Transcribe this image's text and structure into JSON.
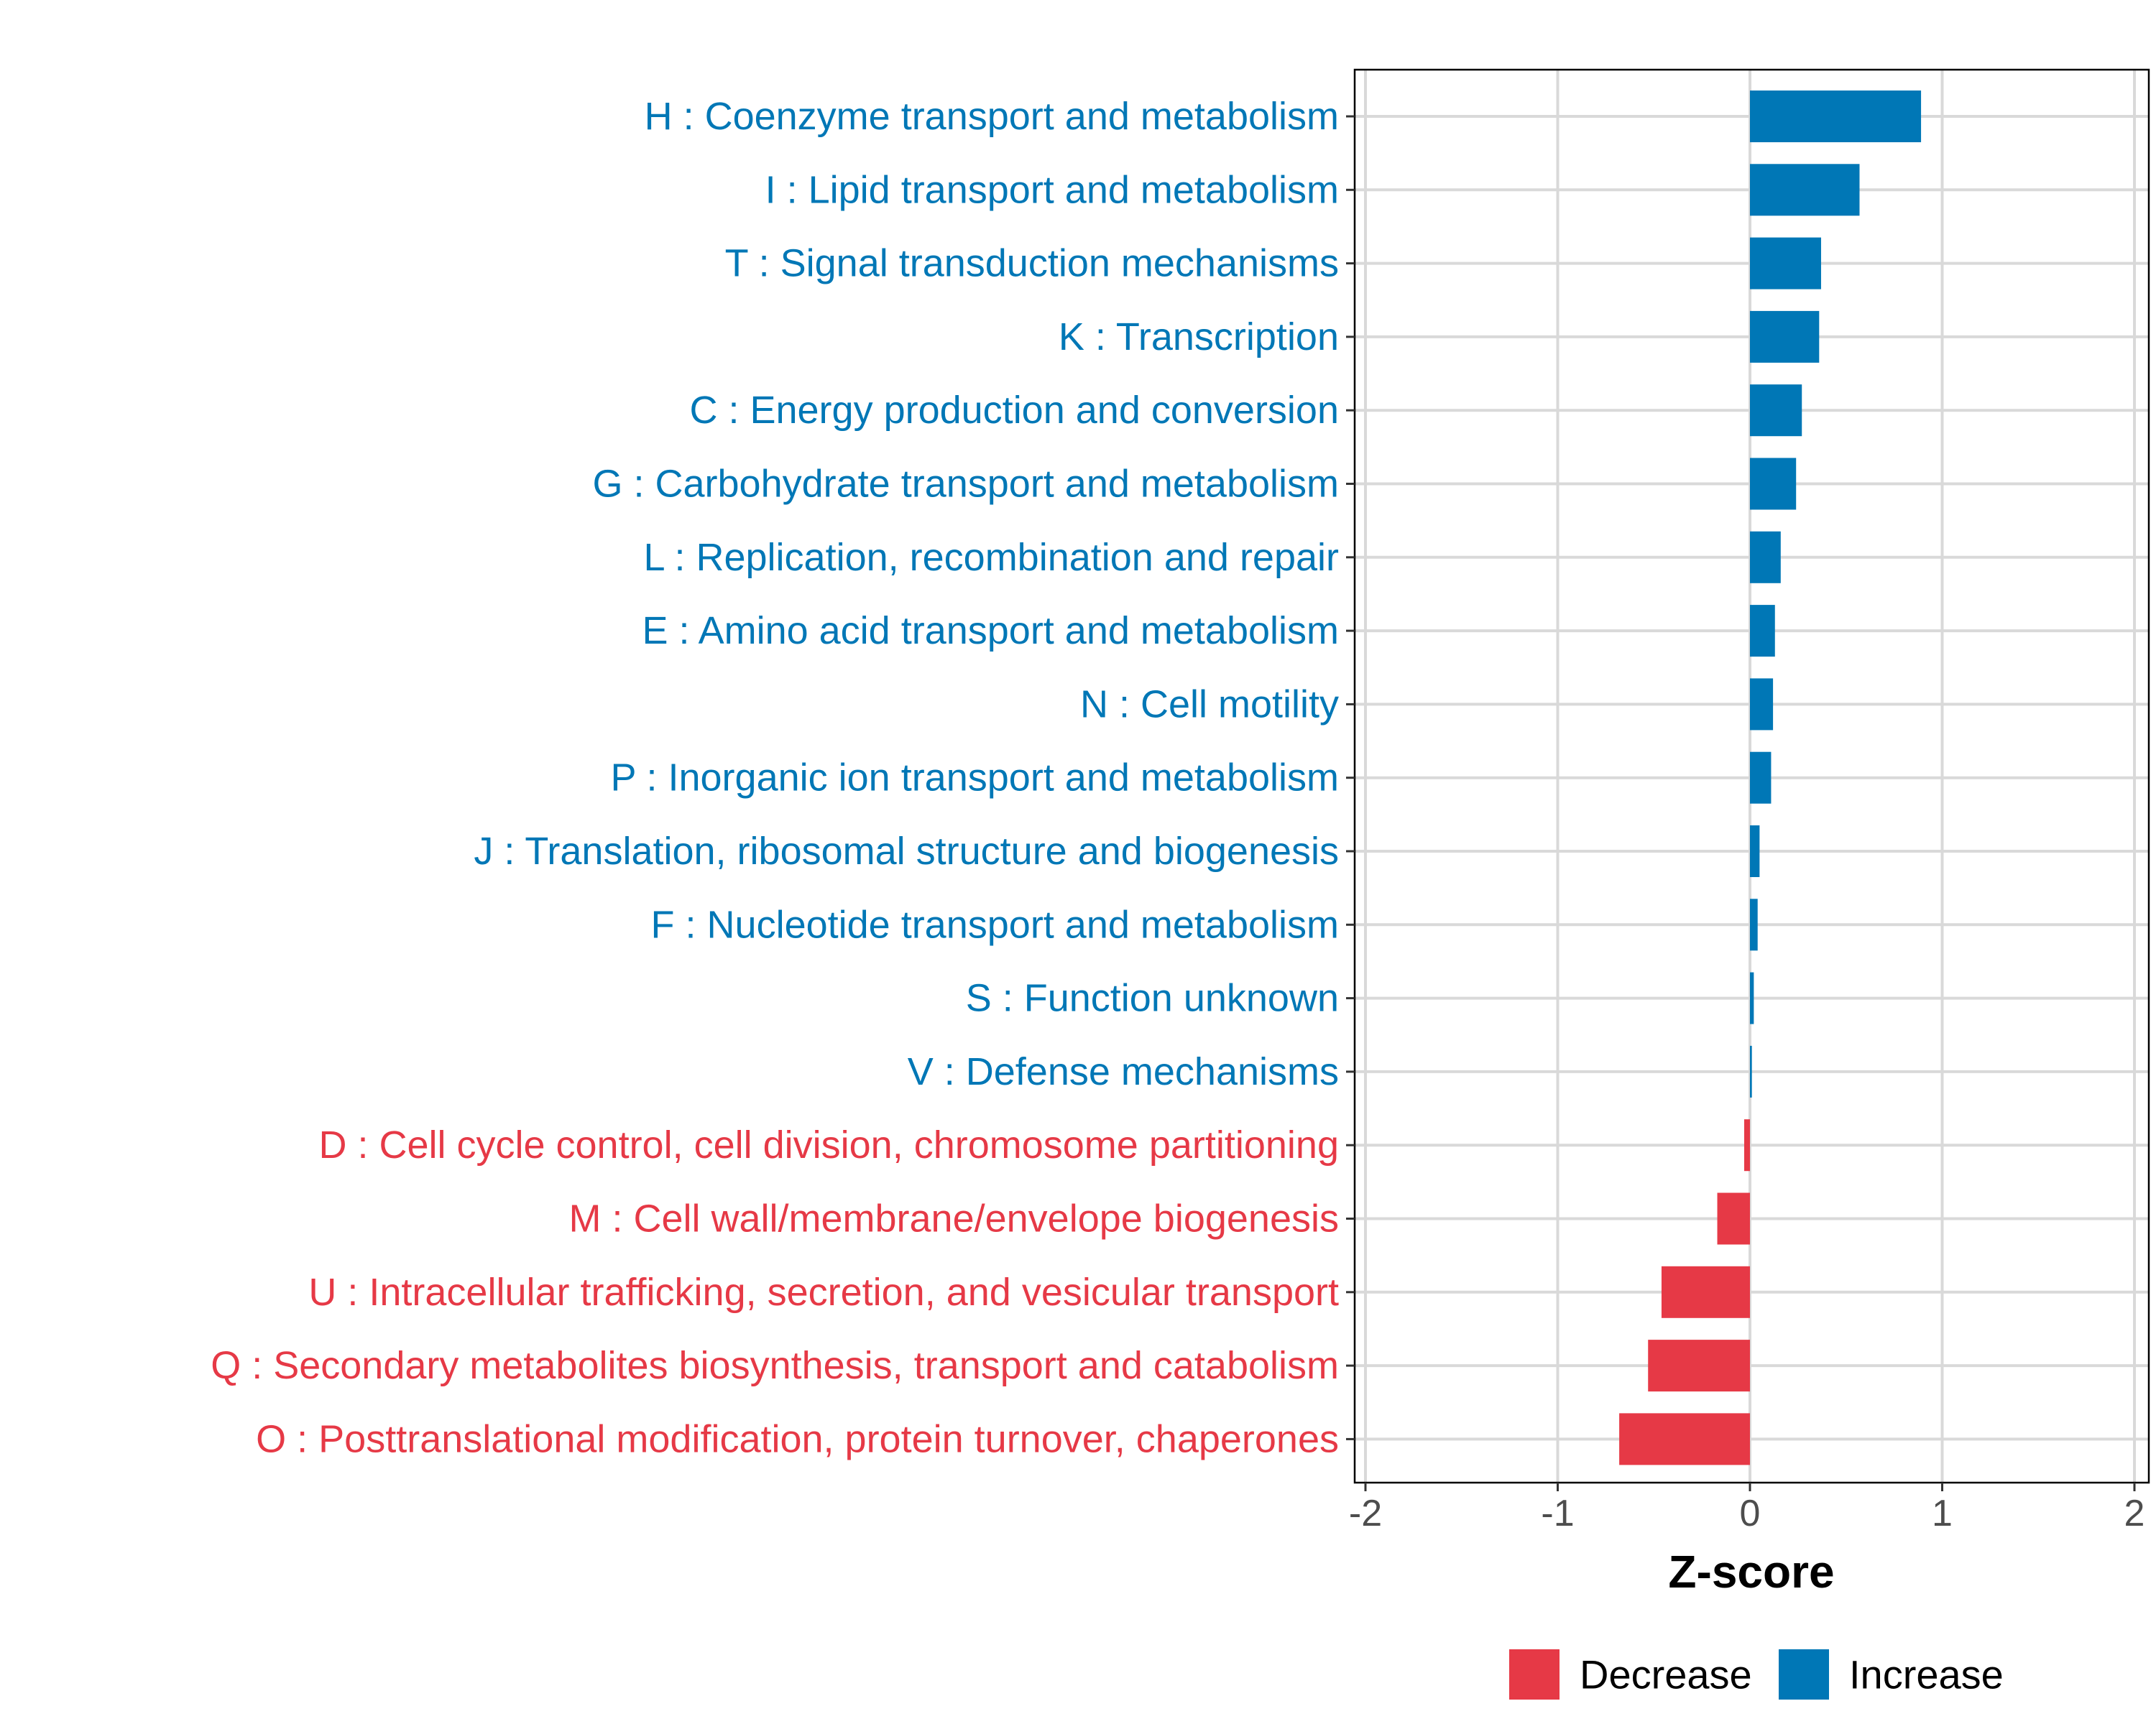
{
  "chart_data": {
    "type": "bar",
    "orientation": "horizontal",
    "title": "",
    "xlabel": "Z-score",
    "ylabel": "",
    "xlim": [
      -2,
      2
    ],
    "xticks": [
      -2,
      -1,
      0,
      1,
      2
    ],
    "xtick_labels": [
      "-2",
      "-1",
      "0",
      "1",
      "2"
    ],
    "grid": true,
    "legend": {
      "placement": "bottom",
      "entries": [
        {
          "name": "Decrease",
          "color": "#E63946"
        },
        {
          "name": "Increase",
          "color": "#0077B6"
        }
      ]
    },
    "categories": [
      {
        "label": "H : Coenzyme transport and metabolism",
        "value": 0.89,
        "group": "Increase"
      },
      {
        "label": "I : Lipid transport and metabolism",
        "value": 0.57,
        "group": "Increase"
      },
      {
        "label": "T : Signal transduction mechanisms",
        "value": 0.37,
        "group": "Increase"
      },
      {
        "label": "K : Transcription",
        "value": 0.36,
        "group": "Increase"
      },
      {
        "label": "C : Energy production and conversion",
        "value": 0.27,
        "group": "Increase"
      },
      {
        "label": "G : Carbohydrate transport and metabolism",
        "value": 0.24,
        "group": "Increase"
      },
      {
        "label": "L : Replication, recombination and repair",
        "value": 0.16,
        "group": "Increase"
      },
      {
        "label": "E : Amino acid transport and metabolism",
        "value": 0.13,
        "group": "Increase"
      },
      {
        "label": "N : Cell motility",
        "value": 0.12,
        "group": "Increase"
      },
      {
        "label": "P : Inorganic ion transport and metabolism",
        "value": 0.11,
        "group": "Increase"
      },
      {
        "label": "J : Translation, ribosomal structure and biogenesis",
        "value": 0.05,
        "group": "Increase"
      },
      {
        "label": "F : Nucleotide transport and metabolism",
        "value": 0.04,
        "group": "Increase"
      },
      {
        "label": "S : Function unknown",
        "value": 0.02,
        "group": "Increase"
      },
      {
        "label": "V : Defense mechanisms",
        "value": 0.01,
        "group": "Increase"
      },
      {
        "label": "D : Cell cycle control, cell division, chromosome partitioning",
        "value": -0.03,
        "group": "Decrease"
      },
      {
        "label": "M : Cell wall/membrane/envelope biogenesis",
        "value": -0.17,
        "group": "Decrease"
      },
      {
        "label": "U : Intracellular trafficking, secretion, and vesicular transport",
        "value": -0.46,
        "group": "Decrease"
      },
      {
        "label": "Q : Secondary metabolites biosynthesis, transport and catabolism",
        "value": -0.53,
        "group": "Decrease"
      },
      {
        "label": "O : Posttranslational modification, protein turnover, chaperones",
        "value": -0.68,
        "group": "Decrease"
      }
    ]
  }
}
